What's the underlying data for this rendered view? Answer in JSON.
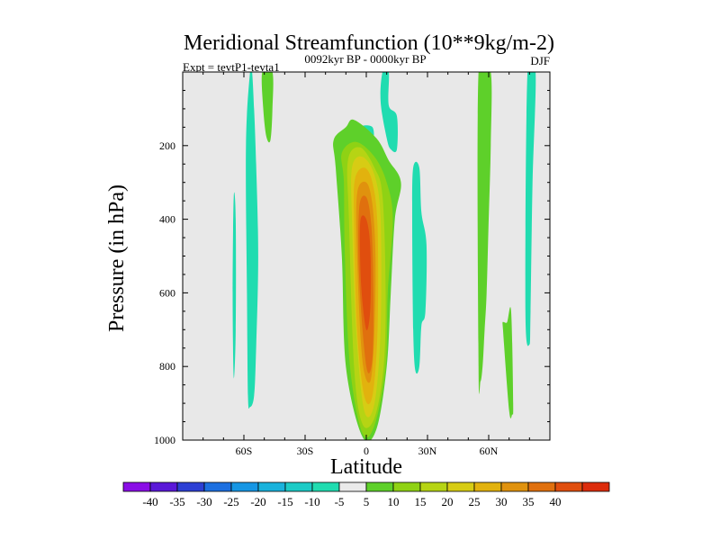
{
  "chart_data": {
    "type": "heatmap",
    "title": "Meridional Streamfunction (10**9kg/m-2)",
    "subtitle_left": "Expt = tevtP1-tevta1",
    "subtitle_center": "0092kyr BP - 0000kyr BP",
    "subtitle_right": "DJF",
    "xlabel": "Latitude",
    "ylabel": "Pressure (in hPa)",
    "xlim": [
      -90,
      90
    ],
    "ylim": [
      1000,
      0
    ],
    "x_ticks": [
      {
        "value": -60,
        "label": "60S"
      },
      {
        "value": -30,
        "label": "30S"
      },
      {
        "value": 0,
        "label": "0"
      },
      {
        "value": 30,
        "label": "30N"
      },
      {
        "value": 60,
        "label": "60N"
      }
    ],
    "y_ticks": [
      {
        "value": 200,
        "label": "200"
      },
      {
        "value": 400,
        "label": "400"
      },
      {
        "value": 600,
        "label": "600"
      },
      {
        "value": 800,
        "label": "800"
      },
      {
        "value": 1000,
        "label": "1000"
      }
    ],
    "background_color": "#e8e8e8",
    "colorbar": {
      "colors": [
        "#8a0ee6",
        "#5a18d8",
        "#2c3fd4",
        "#1c6fe0",
        "#1696e4",
        "#19b2dc",
        "#1ccbc6",
        "#20dcb0",
        "#eaeaea",
        "#5ed02a",
        "#8fd214",
        "#b6d414",
        "#d7cc14",
        "#e2b20e",
        "#e0920e",
        "#e0700e",
        "#e04e0e",
        "#dc2c0c"
      ],
      "labels": [
        "-40",
        "-35",
        "-30",
        "-25",
        "-20",
        "-15",
        "-10",
        "-5",
        "5",
        "10",
        "15",
        "20",
        "25",
        "30",
        "35",
        "40"
      ]
    },
    "contour_fields": [
      {
        "name": "cyan-band-60s-main",
        "level": -5,
        "color": "#20dcb0",
        "lat": [
          -57,
          -56,
          -55,
          -54,
          -53,
          -54,
          -55,
          -57,
          -58,
          -58.5,
          -59
        ],
        "p": [
          0,
          0,
          100,
          250,
          500,
          750,
          880,
          910,
          880,
          600,
          200
        ]
      },
      {
        "name": "cyan-band-60s-thin",
        "level": -5,
        "color": "#20dcb0",
        "lat": [
          -65,
          -64,
          -64,
          -65,
          -65.5
        ],
        "p": [
          340,
          400,
          700,
          830,
          600
        ]
      },
      {
        "name": "green-blob-45s",
        "level": 5,
        "color": "#5ed02a",
        "lat": [
          -51,
          -46,
          -46,
          -47,
          -49,
          -50.5
        ],
        "p": [
          0,
          0,
          100,
          185,
          175,
          100
        ]
      },
      {
        "name": "cyan-band-10n-upper",
        "level": -5,
        "color": "#20dcb0",
        "lat": [
          8,
          11,
          11,
          15,
          15,
          12,
          10,
          7
        ],
        "p": [
          0,
          0,
          90,
          120,
          210,
          210,
          180,
          80
        ]
      },
      {
        "name": "cyan-patch-eq-upper",
        "level": -5,
        "color": "#20dcb0",
        "lat": [
          -3,
          3,
          3,
          -3
        ],
        "p": [
          150,
          150,
          190,
          190
        ]
      },
      {
        "name": "cyan-band-25n",
        "level": -5,
        "color": "#20dcb0",
        "lat": [
          23,
          26,
          27,
          29.5,
          29,
          27,
          26,
          24,
          23,
          22.5
        ],
        "p": [
          260,
          260,
          380,
          470,
          650,
          690,
          800,
          810,
          700,
          400
        ]
      },
      {
        "name": "green-band-55n",
        "level": 5,
        "color": "#5ed02a",
        "lat": [
          55,
          61,
          61,
          60,
          59,
          58,
          57,
          56,
          55
        ],
        "p": [
          0,
          0,
          200,
          400,
          600,
          700,
          800,
          840,
          800
        ]
      },
      {
        "name": "green-band-70n",
        "level": 5,
        "color": "#5ed02a",
        "lat": [
          67,
          69,
          71,
          72,
          71.5,
          70,
          67
        ],
        "p": [
          680,
          680,
          650,
          900,
          930,
          920,
          700
        ]
      },
      {
        "name": "cyan-band-80n",
        "level": -5,
        "color": "#20dcb0",
        "lat": [
          79,
          83,
          81.5,
          80.5,
          80,
          78
        ],
        "p": [
          0,
          0,
          300,
          650,
          740,
          650
        ]
      },
      {
        "name": "jet-level-5",
        "level": 5,
        "color": "#5ed02a",
        "lat": [
          -16,
          -10,
          -6,
          5,
          11,
          17,
          14,
          12,
          10,
          5,
          -2,
          -10,
          -12,
          -15
        ],
        "p": [
          185,
          150,
          130,
          180,
          240,
          300,
          400,
          600,
          800,
          970,
          990,
          800,
          500,
          260
        ]
      },
      {
        "name": "jet-level-10",
        "level": 10,
        "color": "#8fd214",
        "lat": [
          -12,
          -5,
          4,
          10,
          13,
          10.5,
          9.5,
          4,
          -2,
          -8,
          -10.5,
          -11
        ],
        "p": [
          220,
          190,
          230,
          300,
          400,
          600,
          800,
          960,
          980,
          800,
          500,
          300
        ]
      },
      {
        "name": "jet-level-15",
        "level": 15,
        "color": "#b6d414",
        "lat": [
          -9,
          -3,
          4,
          8,
          9.5,
          8.5,
          4,
          -2,
          -6,
          -8.5
        ],
        "p": [
          240,
          205,
          260,
          340,
          600,
          800,
          940,
          955,
          800,
          400
        ]
      },
      {
        "name": "jet-level-20",
        "level": 20,
        "color": "#d7cc14",
        "lat": [
          -7,
          -2,
          4,
          7,
          7,
          4,
          -1,
          -5,
          -7
        ],
        "p": [
          260,
          230,
          280,
          400,
          700,
          900,
          920,
          700,
          400
        ]
      },
      {
        "name": "jet-level-25",
        "level": 25,
        "color": "#e2b20e",
        "lat": [
          -5.5,
          -1,
          3,
          5.5,
          5.5,
          3,
          -1,
          -4.5,
          -6
        ],
        "p": [
          290,
          260,
          300,
          420,
          700,
          880,
          880,
          700,
          400
        ]
      },
      {
        "name": "jet-level-30",
        "level": 30,
        "color": "#e0920e",
        "lat": [
          -4.5,
          0,
          3,
          4.5,
          4,
          2,
          -2,
          -4.5
        ],
        "p": [
          330,
          300,
          360,
          500,
          700,
          840,
          780,
          500
        ]
      },
      {
        "name": "jet-level-35",
        "level": 35,
        "color": "#e0700e",
        "lat": [
          -3.5,
          0,
          2.5,
          3.5,
          3,
          0,
          -3.5
        ],
        "p": [
          370,
          340,
          420,
          600,
          780,
          800,
          560
        ]
      },
      {
        "name": "jet-level-40",
        "level": 40,
        "color": "#e04e0e",
        "lat": [
          -3,
          0,
          2,
          2,
          0,
          -2.5
        ],
        "p": [
          410,
          400,
          480,
          640,
          700,
          580
        ]
      }
    ]
  }
}
